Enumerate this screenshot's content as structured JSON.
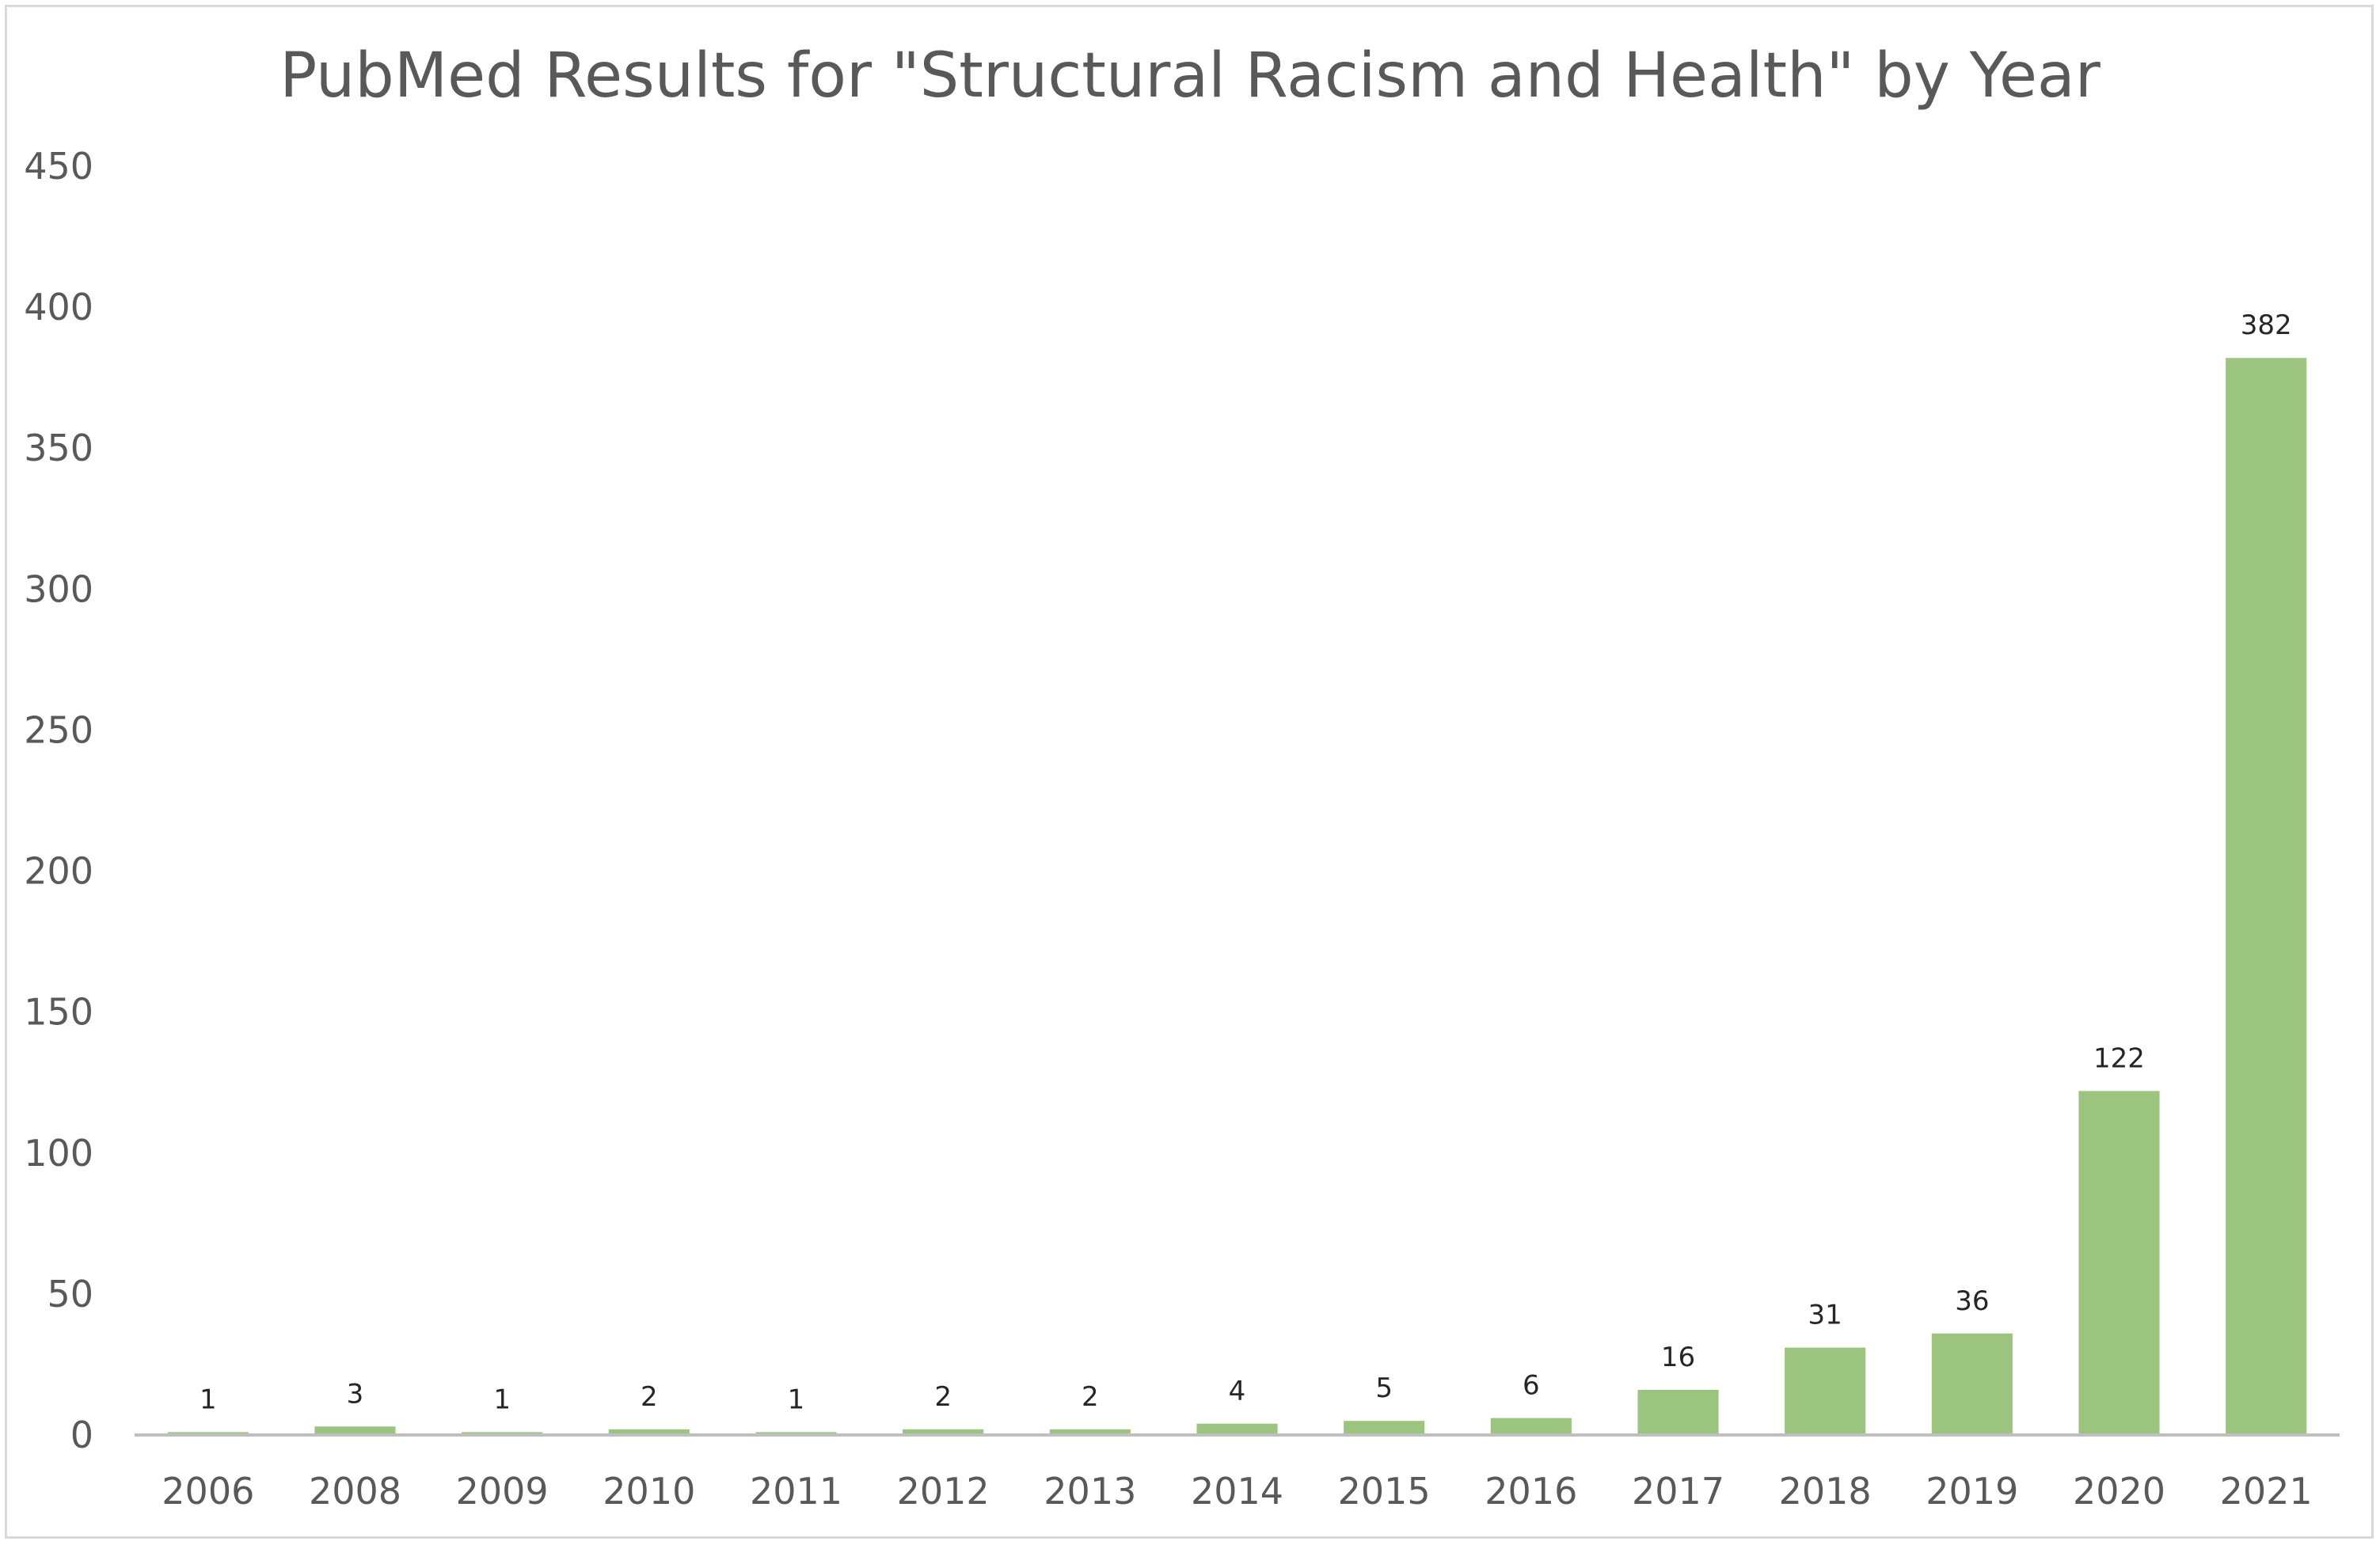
{
  "chart_data": {
    "type": "bar",
    "title": "PubMed Results for \"Structural Racism and Health\" by Year",
    "xlabel": "",
    "ylabel": "",
    "categories": [
      "2006",
      "2008",
      "2009",
      "2010",
      "2011",
      "2012",
      "2013",
      "2014",
      "2015",
      "2016",
      "2017",
      "2018",
      "2019",
      "2020",
      "2021"
    ],
    "values": [
      1,
      3,
      1,
      2,
      1,
      2,
      2,
      4,
      5,
      6,
      16,
      31,
      36,
      122,
      382
    ],
    "ylim": [
      0,
      450
    ],
    "yticks": [
      "0",
      "50",
      "100",
      "150",
      "200",
      "250",
      "300",
      "350",
      "400",
      "450"
    ],
    "data_labels": [
      "1",
      "3",
      "1",
      "2",
      "1",
      "2",
      "2",
      "4",
      "5",
      "6",
      "16",
      "31",
      "36",
      "122",
      "382"
    ],
    "grid": false,
    "legend": "none",
    "bar_color": "#9bc47e",
    "axis_color": "#bfbfbf",
    "text_color": "#595959"
  }
}
